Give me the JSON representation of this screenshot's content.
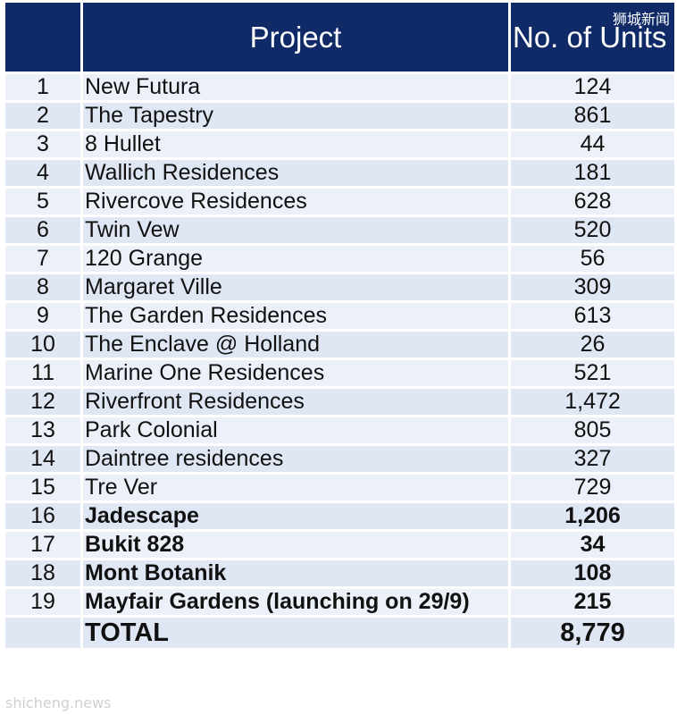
{
  "watermarks": {
    "top_right": "狮城新闻",
    "bottom_left": "shicheng.news"
  },
  "table": {
    "headers": {
      "number": "",
      "project": "Project",
      "units": "No. of Units"
    },
    "rows": [
      {
        "n": "1",
        "project": "New Futura",
        "units": "124",
        "bold": false
      },
      {
        "n": "2",
        "project": "The Tapestry",
        "units": "861",
        "bold": false
      },
      {
        "n": "3",
        "project": "8 Hullet",
        "units": "44",
        "bold": false
      },
      {
        "n": "4",
        "project": "Wallich Residences",
        "units": "181",
        "bold": false
      },
      {
        "n": "5",
        "project": "Rivercove Residences",
        "units": "628",
        "bold": false
      },
      {
        "n": "6",
        "project": "Twin Vew",
        "units": "520",
        "bold": false
      },
      {
        "n": "7",
        "project": "120 Grange",
        "units": "56",
        "bold": false
      },
      {
        "n": "8",
        "project": "Margaret Ville",
        "units": "309",
        "bold": false
      },
      {
        "n": "9",
        "project": "The Garden Residences",
        "units": "613",
        "bold": false
      },
      {
        "n": "10",
        "project": "The Enclave @ Holland",
        "units": "26",
        "bold": false
      },
      {
        "n": "11",
        "project": "Marine One Residences",
        "units": "521",
        "bold": false
      },
      {
        "n": "12",
        "project": "Riverfront Residences",
        "units": "1,472",
        "bold": false
      },
      {
        "n": "13",
        "project": "Park Colonial",
        "units": "805",
        "bold": false
      },
      {
        "n": "14",
        "project": "Daintree residences",
        "units": "327",
        "bold": false
      },
      {
        "n": "15",
        "project": "Tre Ver",
        "units": "729",
        "bold": false
      },
      {
        "n": "16",
        "project": "Jadescape",
        "units": "1,206",
        "bold": true
      },
      {
        "n": "17",
        "project": "Bukit 828",
        "units": "34",
        "bold": true
      },
      {
        "n": "18",
        "project": "Mont Botanik",
        "units": "108",
        "bold": true
      },
      {
        "n": "19",
        "project": "Mayfair Gardens (launching on 29/9)",
        "units": "215",
        "bold": true
      }
    ],
    "total": {
      "label": "TOTAL",
      "units": "8,779"
    }
  },
  "colors": {
    "header_bg": "#0f2a66",
    "row_light": "#ebf0f9",
    "row_dark": "#dfe6f4"
  }
}
